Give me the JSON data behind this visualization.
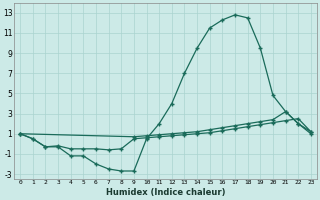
{
  "xlabel": "Humidex (Indice chaleur)",
  "bg_color": "#cceae7",
  "grid_color": "#aad4d0",
  "line_color": "#1a6b5a",
  "xlim": [
    -0.5,
    23.5
  ],
  "ylim": [
    -3.5,
    14.0
  ],
  "xticks": [
    0,
    1,
    2,
    3,
    4,
    5,
    6,
    7,
    8,
    9,
    10,
    11,
    12,
    13,
    14,
    15,
    16,
    17,
    18,
    19,
    20,
    21,
    22,
    23
  ],
  "yticks": [
    -3,
    -1,
    1,
    3,
    5,
    7,
    9,
    11,
    13
  ],
  "series": [
    {
      "x": [
        0,
        1,
        2,
        3,
        4,
        5,
        6,
        7,
        8,
        9,
        10,
        11,
        12,
        13,
        14,
        15,
        16,
        17,
        18,
        19,
        20,
        21,
        22,
        23
      ],
      "y": [
        1,
        0.5,
        -0.3,
        -0.3,
        -1.2,
        -1.2,
        -2.0,
        -2.5,
        -2.7,
        -2.7,
        0.5,
        2.0,
        4.0,
        7.0,
        9.5,
        11.5,
        12.3,
        12.8,
        12.5,
        9.5,
        4.8,
        3.2,
        2.0,
        1.0
      ]
    },
    {
      "x": [
        0,
        1,
        2,
        3,
        4,
        5,
        6,
        7,
        8,
        9,
        10,
        11,
        12,
        13,
        14,
        15,
        16,
        17,
        18,
        19,
        20,
        21,
        22,
        23
      ],
      "y": [
        1,
        0.5,
        -0.3,
        -0.2,
        -0.5,
        -0.5,
        -0.5,
        -0.6,
        -0.5,
        0.5,
        0.6,
        0.7,
        0.8,
        0.9,
        1.0,
        1.1,
        1.3,
        1.5,
        1.7,
        1.9,
        2.1,
        2.3,
        2.5,
        1.2
      ]
    },
    {
      "x": [
        0,
        9,
        10,
        11,
        12,
        13,
        14,
        15,
        16,
        17,
        18,
        19,
        20,
        21,
        22,
        23
      ],
      "y": [
        1,
        0.7,
        0.8,
        0.9,
        1.0,
        1.1,
        1.2,
        1.4,
        1.6,
        1.8,
        2.0,
        2.2,
        2.4,
        3.2,
        2.0,
        1.2
      ]
    }
  ]
}
